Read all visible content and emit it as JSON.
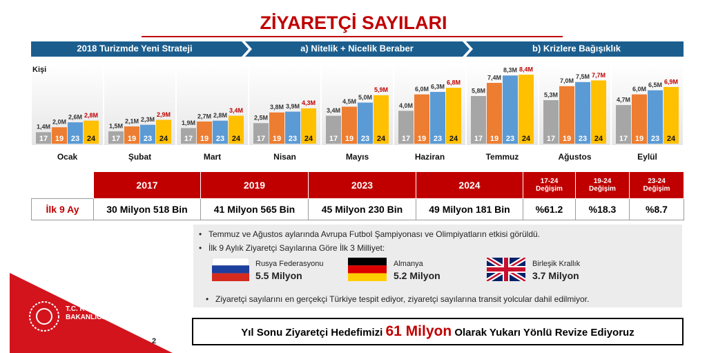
{
  "title": "ZİYARETÇİ SAYILARI",
  "strategy": [
    "2018 Turizmde Yeni Strateji",
    "a) Nitelik + Nicelik Beraber",
    "b) Krizlere Bağışıklık"
  ],
  "chart_data": {
    "type": "bar",
    "y_label": "Kişi",
    "categories": [
      "Ocak",
      "Şubat",
      "Mart",
      "Nisan",
      "Mayıs",
      "Haziran",
      "Temmuz",
      "Ağustos",
      "Eylül"
    ],
    "ylim": [
      0,
      9.5
    ],
    "series": [
      {
        "name": "17",
        "color": "#a6a6a6",
        "label_color": "#333333",
        "values": [
          1.4,
          1.5,
          1.9,
          2.5,
          3.4,
          4.0,
          5.8,
          5.3,
          4.7
        ],
        "value_labels": [
          "1,4M",
          "1,5M",
          "1,9M",
          "2,5M",
          "3,4M",
          "4,0M",
          "5,8M",
          "5,3M",
          "4,7M"
        ]
      },
      {
        "name": "19",
        "color": "#ed7d31",
        "label_color": "#333333",
        "values": [
          2.0,
          2.1,
          2.7,
          3.8,
          4.5,
          6.0,
          7.4,
          7.0,
          6.0
        ],
        "value_labels": [
          "2,0M",
          "2,1M",
          "2,7M",
          "3,8M",
          "4,5M",
          "6,0M",
          "7,4M",
          "7,0M",
          "6,0M"
        ]
      },
      {
        "name": "23",
        "color": "#5b9bd5",
        "label_color": "#333333",
        "values": [
          2.6,
          2.3,
          2.8,
          3.9,
          5.0,
          6.3,
          8.3,
          7.5,
          6.5
        ],
        "value_labels": [
          "2,6M",
          "2,3M",
          "2,8M",
          "3,9M",
          "5,0M",
          "6,3M",
          "8,3M",
          "7,5M",
          "6,5M"
        ]
      },
      {
        "name": "24",
        "color": "#ffc000",
        "label_color": "#c00000",
        "values": [
          2.8,
          2.9,
          3.4,
          4.3,
          5.9,
          6.8,
          8.4,
          7.7,
          6.9
        ],
        "value_labels": [
          "2,8M",
          "2,9M",
          "3,4M",
          "4,3M",
          "5,9M",
          "6,8M",
          "8,4M",
          "7,7M",
          "6,9M"
        ]
      }
    ]
  },
  "table": {
    "header": [
      "2017",
      "2019",
      "2023",
      "2024",
      "17-24\nDeğişim",
      "19-24\nDeğişim",
      "23-24\nDeğişim"
    ],
    "rows": [
      [
        "İlk 9 Ay",
        "30 Milyon 518 Bin",
        "41 Milyon 565 Bin",
        "45 Milyon 230 Bin",
        "49 Milyon 181 Bin",
        "%61.2",
        "%18.3",
        "%8.7"
      ]
    ]
  },
  "notes": {
    "bullets": [
      "Temmuz ve Ağustos aylarında Avrupa Futbol Şampiyonası ve Olimpiyatların etkisi görüldü.",
      "İlk 9 Aylık Ziyaretçi Sayılarına Göre İlk 3 Milliyet:",
      "Ziyaretçi sayılarını en gerçekçi Türkiye tespit ediyor, ziyaretçi sayılarına transit yolcular dahil edilmiyor."
    ],
    "countries": [
      {
        "name": "Rusya Federasyonu",
        "value": "5.5 Milyon"
      },
      {
        "name": "Almanya",
        "value": "5.2 Milyon"
      },
      {
        "name": "Birleşik Krallık",
        "value": "3.7 Milyon"
      }
    ]
  },
  "footer": {
    "before": "Yıl Sonu Ziyaretçi Hedefimizi ",
    "highlight": "61 Milyon",
    "after": " Olarak Yukarı Yönlü Revize Ediyoruz"
  },
  "ministry": "T.C. KÜLTÜR VE TURİZM\nBAKANLIĞI",
  "page_number": "2"
}
